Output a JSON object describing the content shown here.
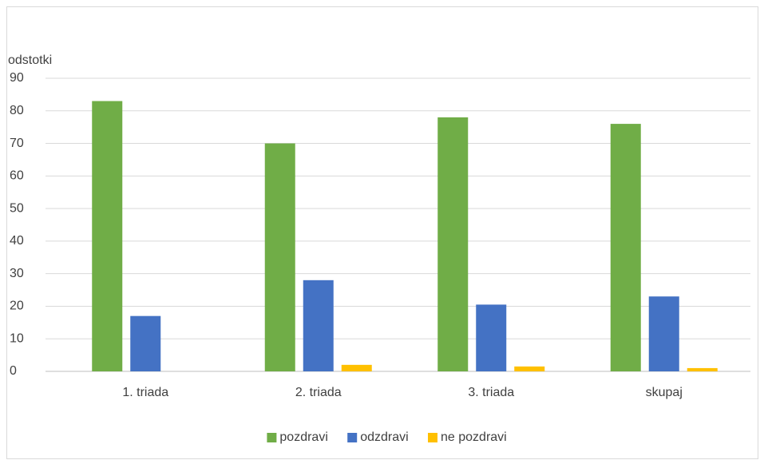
{
  "chart_data": {
    "type": "bar",
    "y_label": "odstotki",
    "categories": [
      "1. triada",
      "2. triada",
      "3. triada",
      "skupaj"
    ],
    "series": [
      {
        "name": "pozdravi",
        "color": "#70ad47",
        "values": [
          83,
          70,
          78,
          76
        ]
      },
      {
        "name": "odzdravi",
        "color": "#4472c4",
        "values": [
          17,
          28,
          20.5,
          23
        ]
      },
      {
        "name": "ne pozdravi",
        "color": "#ffc000",
        "values": [
          0,
          2,
          1.5,
          1
        ]
      }
    ],
    "ylim": [
      0,
      90
    ],
    "yticks": [
      0,
      10,
      20,
      30,
      40,
      50,
      60,
      70,
      80,
      90
    ],
    "grid": true,
    "legend": "bottom"
  }
}
